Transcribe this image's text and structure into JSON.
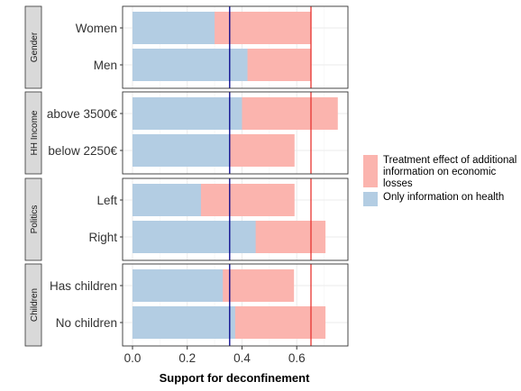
{
  "chart_data": {
    "type": "bar",
    "orientation": "horizontal",
    "stacked": true,
    "xlabel": "Support for deconfinement",
    "xlim": [
      0,
      0.78
    ],
    "xticks": [
      0.0,
      0.2,
      0.4,
      0.6
    ],
    "xtick_labels": [
      "0.0",
      "0.2",
      "0.4",
      "0.6"
    ],
    "grid": true,
    "legend_position": "right",
    "reference_lines": [
      {
        "x": 0.355,
        "color": "#00008b"
      },
      {
        "x": 0.652,
        "color": "#e8342f"
      }
    ],
    "series": [
      {
        "name": "Treatment effect of additional information on economic losses",
        "color": "#fbb4ae"
      },
      {
        "name": "Only information on health",
        "color": "#b3cde3"
      }
    ],
    "panels": [
      {
        "strip": "Gender",
        "categories": [
          "Women",
          "Men"
        ],
        "health": [
          0.3,
          0.42
        ],
        "total": [
          0.652,
          0.652
        ]
      },
      {
        "strip": "HH Income",
        "categories": [
          "above 3500€",
          "below 2250€"
        ],
        "health": [
          0.4,
          0.355
        ],
        "total": [
          0.75,
          0.592
        ]
      },
      {
        "strip": "Politics",
        "categories": [
          "Left",
          "Right"
        ],
        "health": [
          0.25,
          0.45
        ],
        "total": [
          0.592,
          0.705
        ]
      },
      {
        "strip": "Children",
        "categories": [
          "Has children",
          "No children"
        ],
        "health": [
          0.33,
          0.375
        ],
        "total": [
          0.59,
          0.705
        ]
      }
    ]
  }
}
